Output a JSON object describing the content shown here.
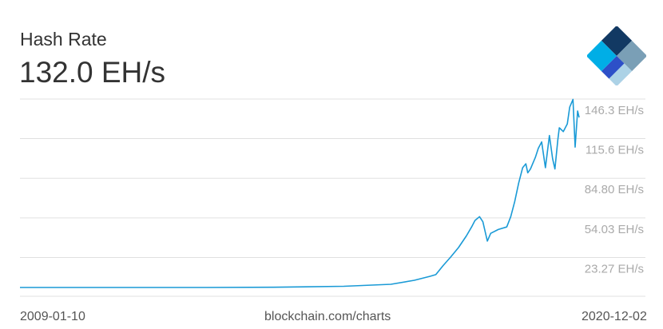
{
  "header": {
    "title": "Hash Rate",
    "current_value": "132.0 EH/s"
  },
  "logo": {
    "name": "blockchain-logo-icon",
    "colors": [
      "#123963",
      "#7a9fb6",
      "#2d50c8",
      "#acd2e6",
      "#00aee6"
    ]
  },
  "footer": {
    "start_date": "2009-01-10",
    "source": "blockchain.com/charts",
    "end_date": "2020-12-02"
  },
  "chart_data": {
    "type": "line",
    "title": "Hash Rate",
    "xlabel": "",
    "ylabel": "",
    "xlim": [
      "2009-01-10",
      "2020-12-02"
    ],
    "ylim": [
      0,
      146.3
    ],
    "grid": true,
    "line_color": "#1a9ad6",
    "y_ticks": [
      {
        "value": 146.3,
        "label": "146.3 EH/s"
      },
      {
        "value": 115.6,
        "label": "115.6 EH/s"
      },
      {
        "value": 84.8,
        "label": "84.80 EH/s"
      },
      {
        "value": 54.03,
        "label": "54.03 EH/s"
      },
      {
        "value": 23.27,
        "label": "23.27 EH/s"
      }
    ],
    "series": [
      {
        "unit": "EH/s",
        "points": [
          [
            "2009-01-10",
            0
          ],
          [
            "2011-01-01",
            0
          ],
          [
            "2013-01-01",
            0.02
          ],
          [
            "2014-06-01",
            0.2
          ],
          [
            "2015-12-01",
            0.9
          ],
          [
            "2016-12-01",
            2.5
          ],
          [
            "2017-06-01",
            5.6
          ],
          [
            "2017-10-01",
            8.7
          ],
          [
            "2017-11-15",
            10
          ],
          [
            "2018-01-10",
            17
          ],
          [
            "2018-03-10",
            23.6
          ],
          [
            "2018-05-10",
            31
          ],
          [
            "2018-07-10",
            40
          ],
          [
            "2018-08-20",
            47
          ],
          [
            "2018-09-15",
            52
          ],
          [
            "2018-10-20",
            55
          ],
          [
            "2018-11-15",
            51
          ],
          [
            "2018-12-20",
            36
          ],
          [
            "2019-01-15",
            42
          ],
          [
            "2019-03-15",
            45
          ],
          [
            "2019-05-20",
            47
          ],
          [
            "2019-06-20",
            55
          ],
          [
            "2019-07-20",
            66.5
          ],
          [
            "2019-08-20",
            81
          ],
          [
            "2019-09-20",
            93
          ],
          [
            "2019-10-15",
            96
          ],
          [
            "2019-10-30",
            89
          ],
          [
            "2019-11-20",
            92
          ],
          [
            "2019-12-28",
            101
          ],
          [
            "2020-01-20",
            108
          ],
          [
            "2020-02-15",
            113
          ],
          [
            "2020-03-15",
            93
          ],
          [
            "2020-04-15",
            118
          ],
          [
            "2020-05-10",
            100
          ],
          [
            "2020-05-28",
            92
          ],
          [
            "2020-06-20",
            115
          ],
          [
            "2020-07-01",
            124
          ],
          [
            "2020-08-01",
            121
          ],
          [
            "2020-09-01",
            127
          ],
          [
            "2020-09-20",
            140
          ],
          [
            "2020-10-15",
            146
          ],
          [
            "2020-11-01",
            109
          ],
          [
            "2020-11-20",
            137
          ],
          [
            "2020-12-02",
            132
          ]
        ]
      }
    ]
  }
}
